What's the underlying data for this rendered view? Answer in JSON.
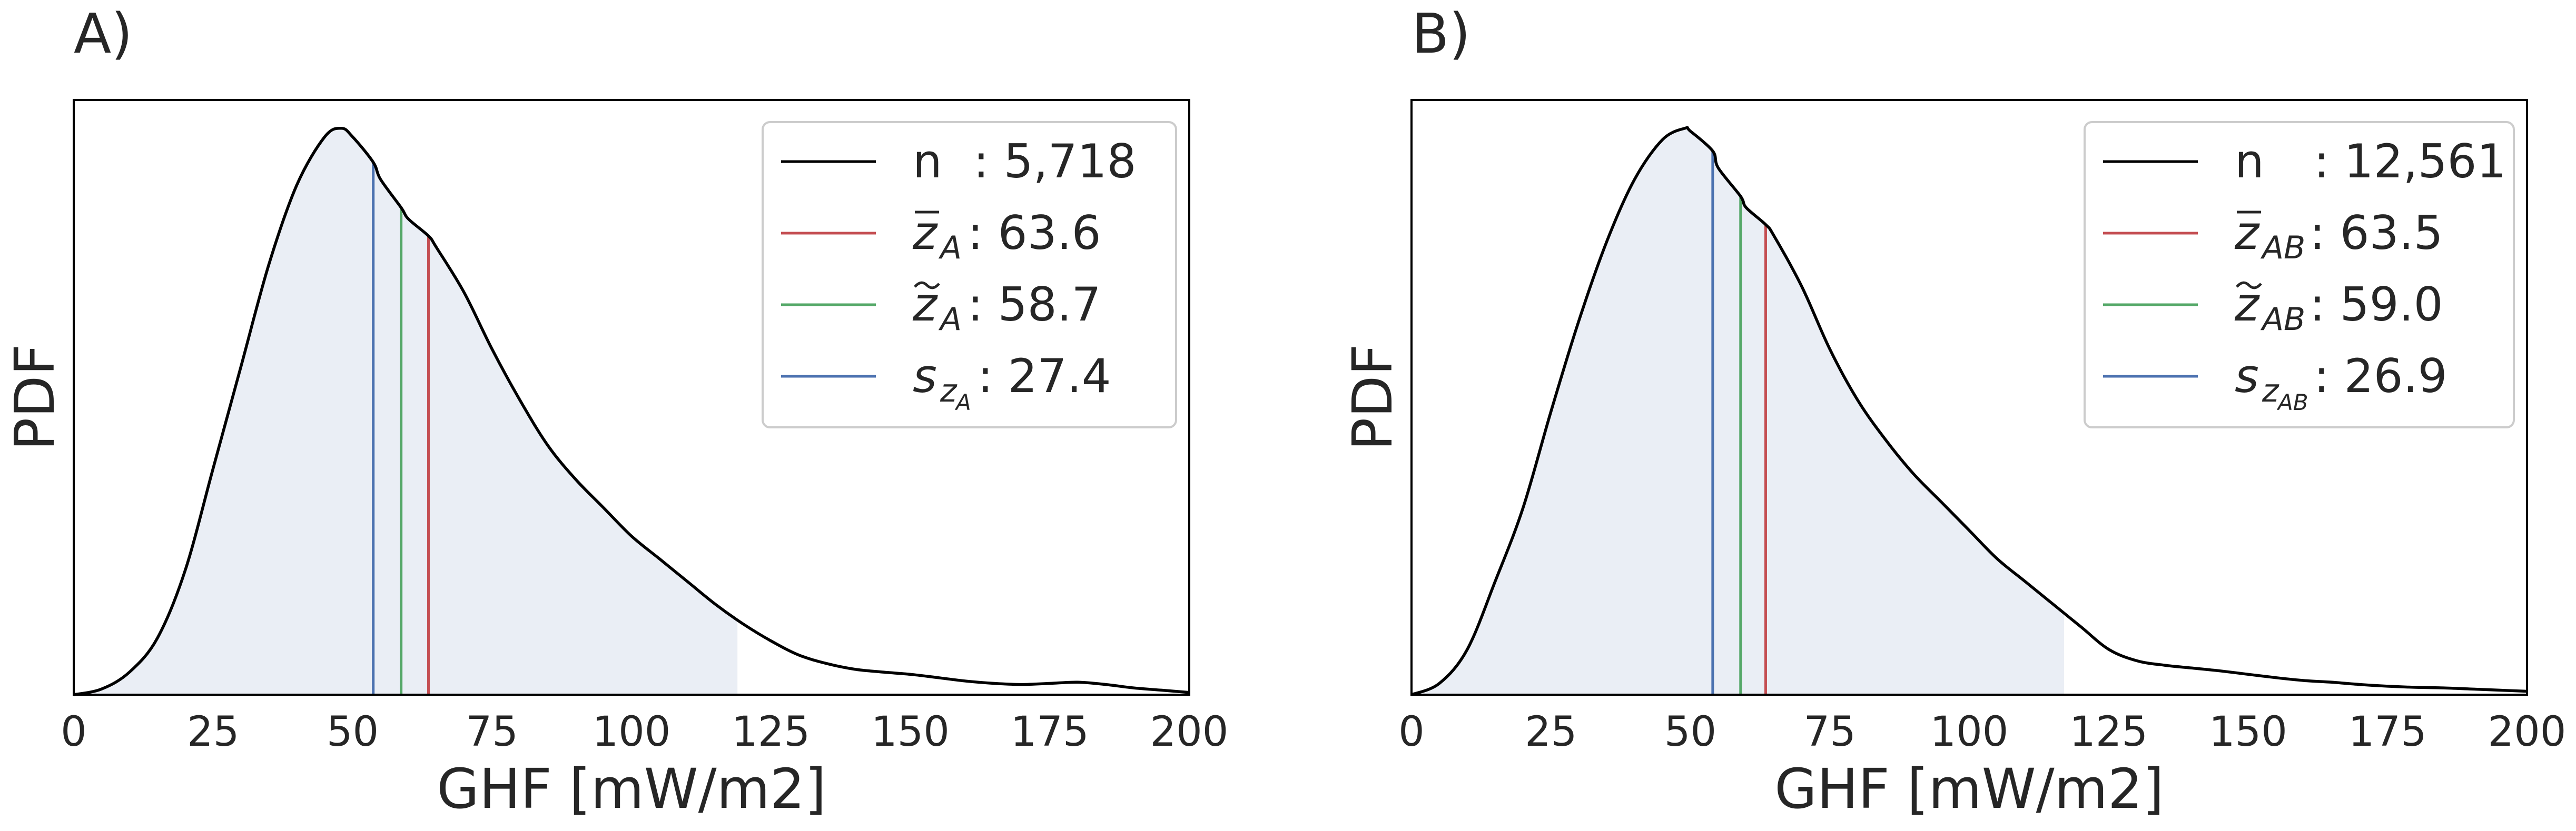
{
  "chart_data": [
    {
      "type": "area",
      "panel_label": "A)",
      "xlabel": "GHF [mW/m2]",
      "ylabel": "PDF",
      "xlim": [
        0,
        200
      ],
      "ylim": [
        0,
        1.05
      ],
      "x_ticks": [
        "0",
        "25",
        "50",
        "75",
        "100",
        "125",
        "150",
        "175",
        "200"
      ],
      "grid": false,
      "shade_range": [
        0,
        119
      ],
      "curve": {
        "name": "n",
        "x": [
          0,
          5,
          10,
          15,
          20,
          25,
          30,
          35,
          40,
          45,
          48,
          50,
          53.7,
          55,
          58.7,
          60,
          63.6,
          65,
          70,
          75,
          80,
          85,
          90,
          95,
          100,
          105,
          110,
          115,
          120,
          125,
          130,
          135,
          140,
          145,
          150,
          155,
          160,
          165,
          170,
          175,
          180,
          185,
          190,
          195,
          200
        ],
        "y": [
          0,
          0.01,
          0.04,
          0.1,
          0.22,
          0.4,
          0.58,
          0.76,
          0.9,
          0.985,
          1.0,
          0.985,
          0.94,
          0.91,
          0.86,
          0.84,
          0.81,
          0.79,
          0.71,
          0.61,
          0.52,
          0.44,
          0.38,
          0.33,
          0.28,
          0.24,
          0.2,
          0.16,
          0.125,
          0.095,
          0.07,
          0.055,
          0.045,
          0.04,
          0.036,
          0.03,
          0.024,
          0.02,
          0.018,
          0.02,
          0.022,
          0.018,
          0.012,
          0.008,
          0.004
        ]
      },
      "vlines": [
        {
          "name": "mean",
          "x": 63.6,
          "color": "#c44e52"
        },
        {
          "name": "median",
          "x": 58.7,
          "color": "#55a868"
        },
        {
          "name": "std",
          "x": 53.7,
          "color": "#4c72b0"
        }
      ],
      "legend": {
        "placement": "upper-right",
        "entries": [
          {
            "color": "#000000",
            "symbol": "n",
            "label": ": 5,718"
          },
          {
            "color": "#c44e52",
            "symbol": "z",
            "sub": "A",
            "mark": "bar",
            "label": ": 63.6"
          },
          {
            "color": "#55a868",
            "symbol": "z",
            "sub": "A",
            "mark": "tilde",
            "label": ": 58.7"
          },
          {
            "color": "#4c72b0",
            "symbol": "s",
            "sub": "z",
            "subsub": "A",
            "mark": "",
            "label": ": 27.4"
          }
        ]
      }
    },
    {
      "type": "area",
      "panel_label": "B)",
      "xlabel": "GHF [mW/m2]",
      "ylabel": "PDF",
      "xlim": [
        0,
        200
      ],
      "ylim": [
        0,
        1.05
      ],
      "x_ticks": [
        "0",
        "25",
        "50",
        "75",
        "100",
        "125",
        "150",
        "175",
        "200"
      ],
      "grid": false,
      "shade_range": [
        0,
        117
      ],
      "curve": {
        "name": "n",
        "x": [
          0,
          5,
          10,
          15,
          20,
          25,
          30,
          35,
          40,
          45,
          49,
          50,
          54,
          55,
          59,
          60,
          63.5,
          65,
          70,
          75,
          80,
          85,
          90,
          95,
          100,
          105,
          110,
          115,
          120,
          125,
          130,
          135,
          140,
          145,
          150,
          155,
          160,
          165,
          170,
          175,
          180,
          185,
          190,
          195,
          200
        ],
        "y": [
          0,
          0.02,
          0.08,
          0.2,
          0.33,
          0.5,
          0.66,
          0.8,
          0.91,
          0.98,
          1.0,
          0.995,
          0.96,
          0.93,
          0.88,
          0.86,
          0.83,
          0.81,
          0.72,
          0.61,
          0.52,
          0.45,
          0.39,
          0.34,
          0.29,
          0.24,
          0.2,
          0.16,
          0.12,
          0.08,
          0.06,
          0.052,
          0.047,
          0.042,
          0.036,
          0.03,
          0.025,
          0.022,
          0.018,
          0.015,
          0.013,
          0.012,
          0.01,
          0.008,
          0.006
        ]
      },
      "vlines": [
        {
          "name": "mean",
          "x": 63.5,
          "color": "#c44e52"
        },
        {
          "name": "median",
          "x": 59.0,
          "color": "#55a868"
        },
        {
          "name": "std",
          "x": 54.0,
          "color": "#4c72b0"
        }
      ],
      "legend": {
        "placement": "upper-right",
        "entries": [
          {
            "color": "#000000",
            "symbol": "n",
            "label": ": 12,561"
          },
          {
            "color": "#c44e52",
            "symbol": "z",
            "sub": "AB",
            "mark": "bar",
            "label": ": 63.5"
          },
          {
            "color": "#55a868",
            "symbol": "z",
            "sub": "AB",
            "mark": "tilde",
            "label": ": 59.0"
          },
          {
            "color": "#4c72b0",
            "symbol": "s",
            "sub": "z",
            "subsub": "AB",
            "mark": "",
            "label": ": 26.9"
          }
        ]
      }
    }
  ],
  "colors": {
    "fill": "#eaeef5",
    "curve": "#000000",
    "text": "#262626",
    "legend_border": "#cccccc"
  }
}
